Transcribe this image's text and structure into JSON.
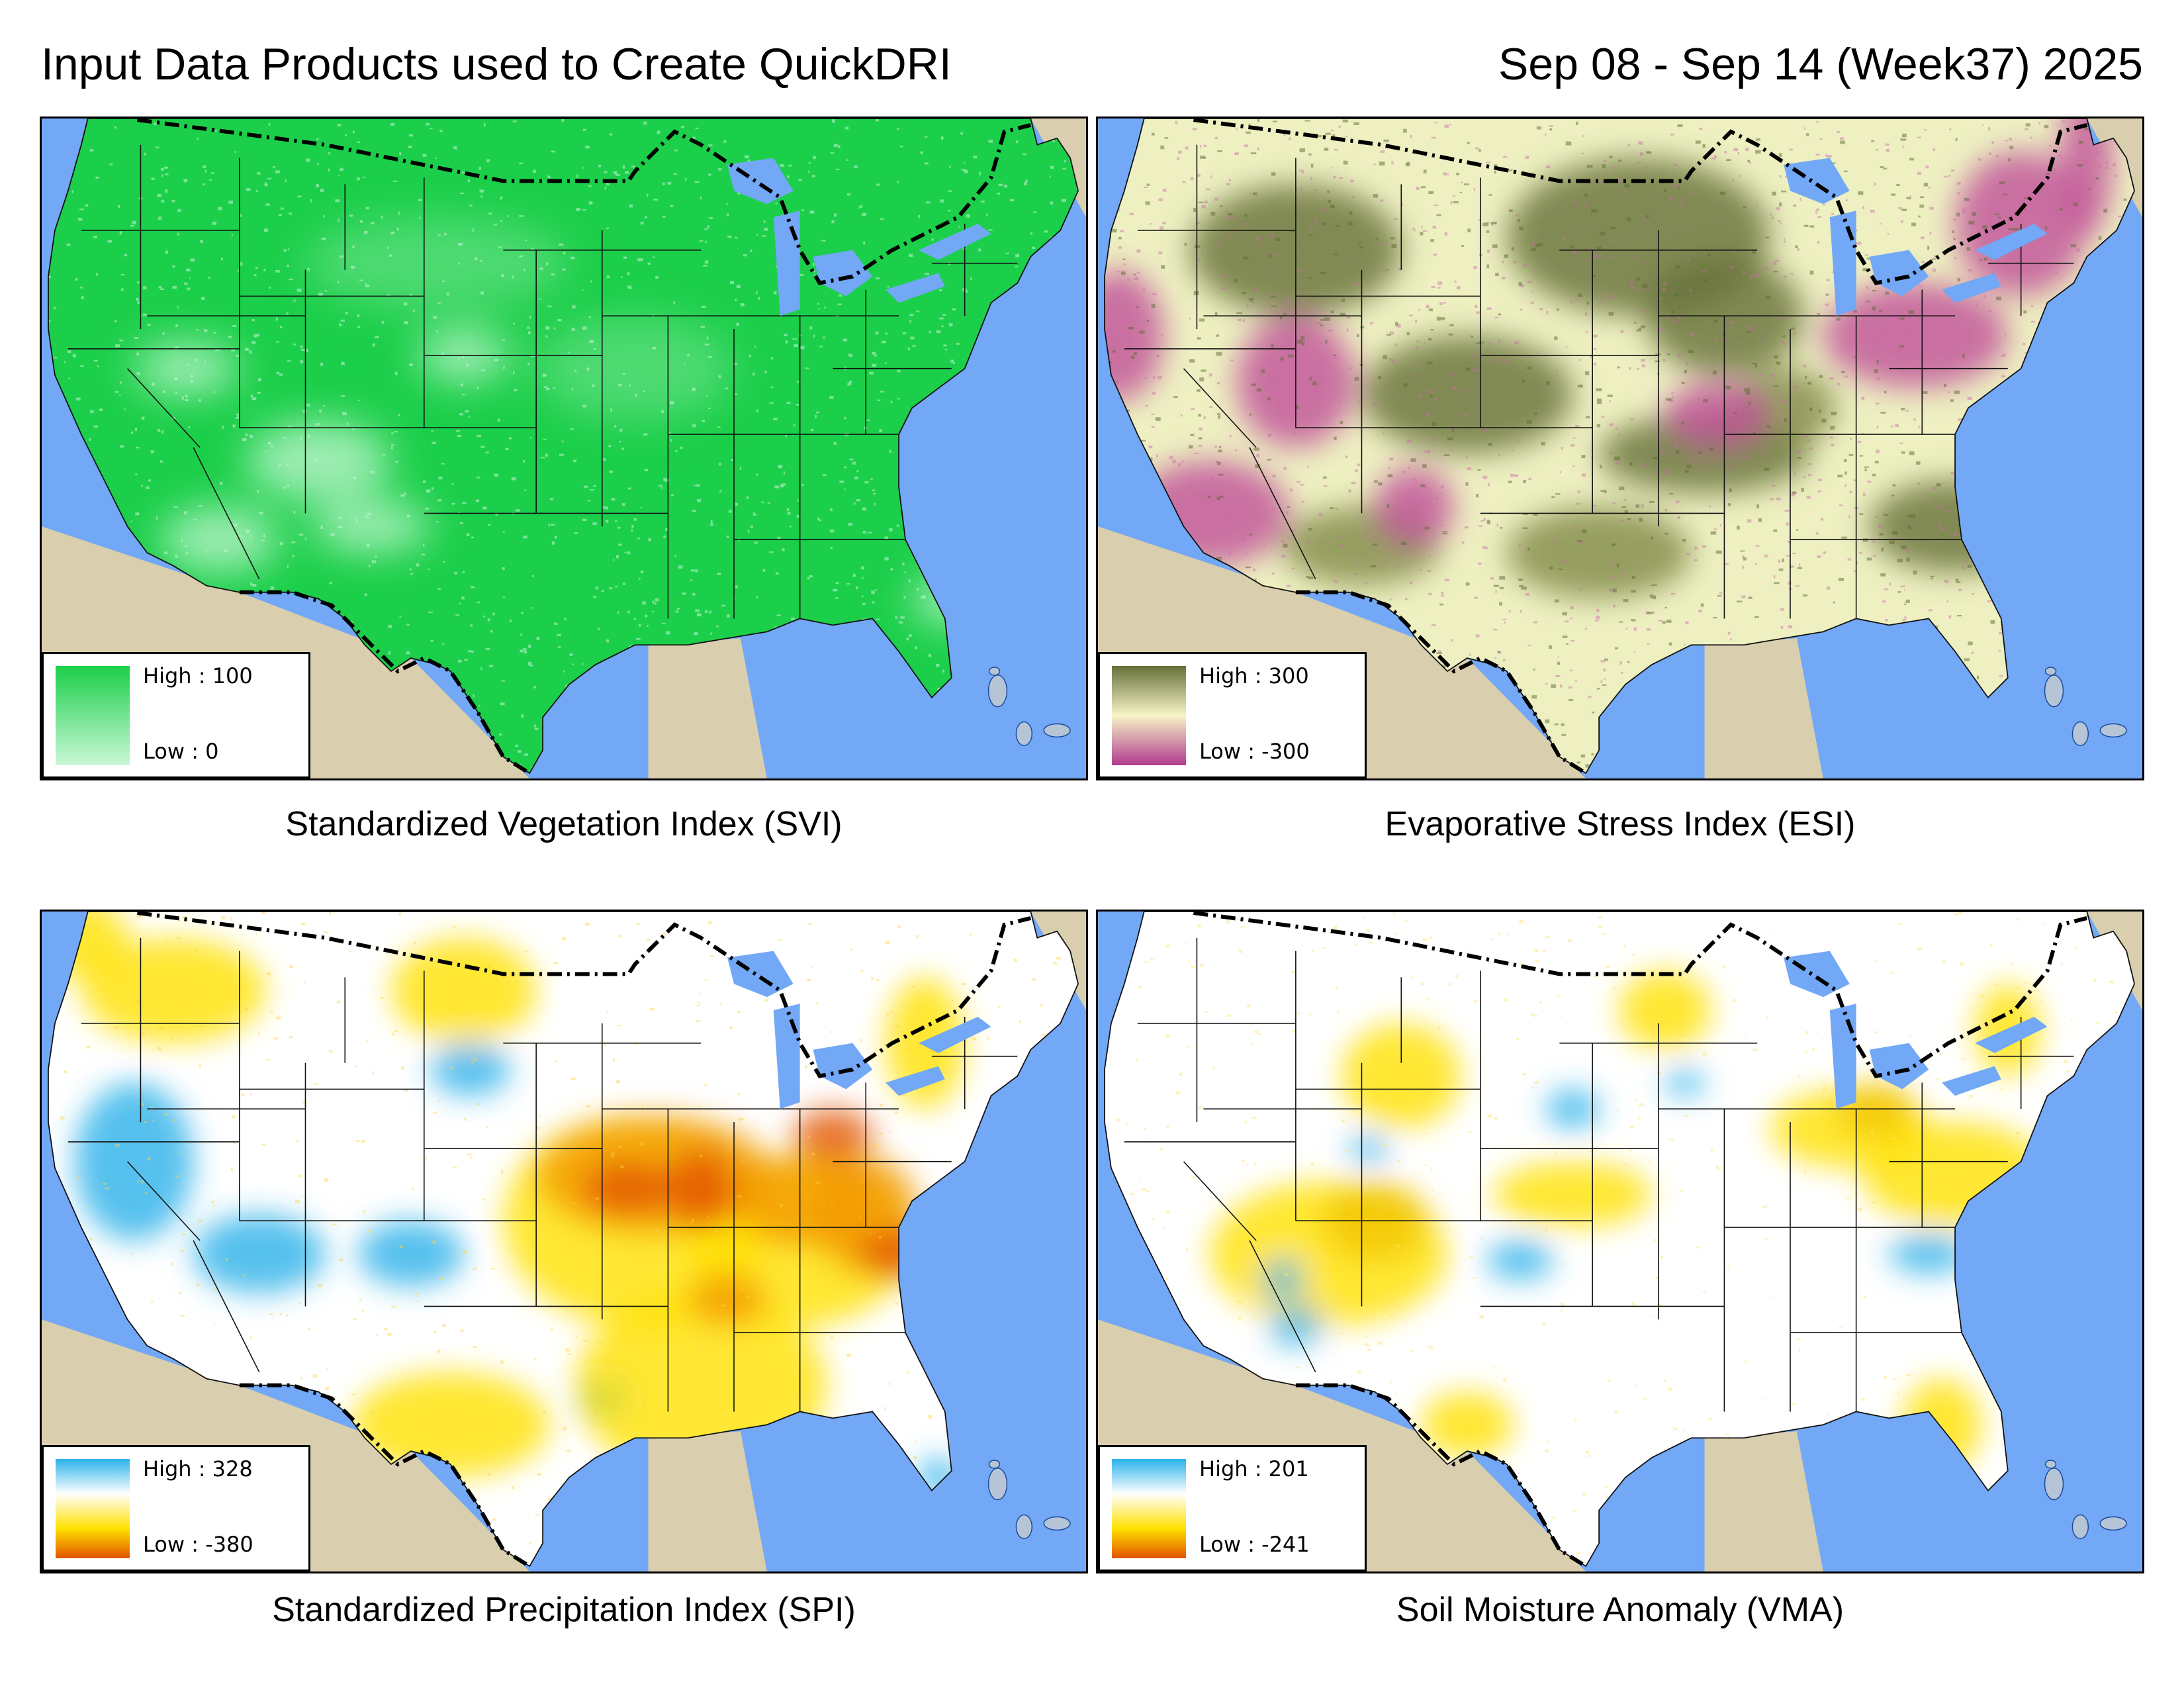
{
  "header": {
    "title": "Input Data Products used to Create QuickDRI",
    "period": "Sep 08 - Sep 14 (Week37) 2025"
  },
  "colors": {
    "ocean": "#72a8f5",
    "land_outside": "#d9ceae",
    "svi": [
      "#c9f7d6",
      "#1ccf4a"
    ],
    "esi": [
      "#b13b8e",
      "#f7f4c6",
      "#66703a"
    ],
    "spi": [
      "#e25400",
      "#ffe100",
      "#ffffff",
      "#2ab2ea"
    ],
    "vma": [
      "#e25400",
      "#ffe100",
      "#ffffff",
      "#2ab2ea"
    ]
  },
  "panels": [
    {
      "id": "svi",
      "caption": "Standardized Vegetation Index (SVI)",
      "legend": {
        "high": "High : 100",
        "low": "Low : 0"
      },
      "base_fill": "#1ccf4a"
    },
    {
      "id": "esi",
      "caption": "Evaporative Stress Index (ESI)",
      "legend": {
        "high": "High : 300",
        "low": "Low : -300"
      },
      "base_fill": "#eef0c2"
    },
    {
      "id": "spi",
      "caption": "Standardized Precipitation Index (SPI)",
      "legend": {
        "high": "High : 328",
        "low": "Low : -380"
      },
      "base_fill": "#ffffff"
    },
    {
      "id": "vma",
      "caption": "Soil Moisture Anomaly (VMA)",
      "legend": {
        "high": "High : 201",
        "low": "Low : -241"
      },
      "base_fill": "#ffffff"
    }
  ]
}
